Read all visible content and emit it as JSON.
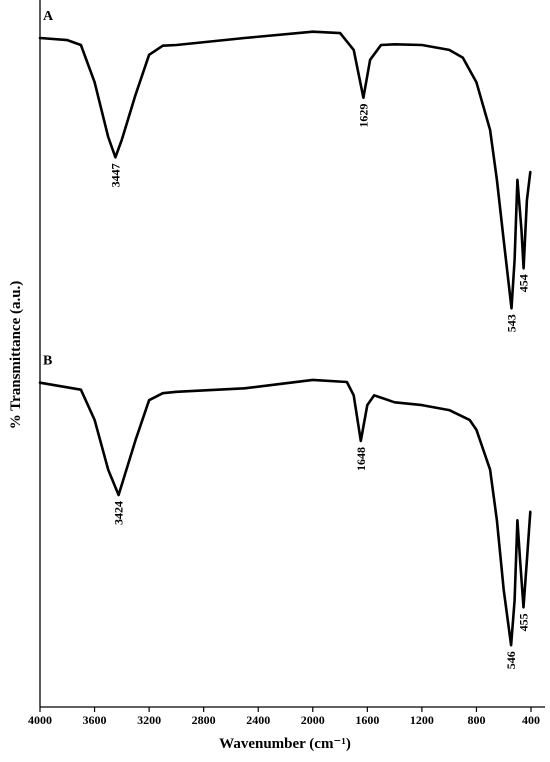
{
  "chart_data": {
    "type": "line",
    "xlabel": "Wavenumber (cm⁻¹)",
    "ylabel": "% Transmittance (a.u.)",
    "xlim": [
      4000,
      400
    ],
    "xticks": [
      4000,
      3600,
      3200,
      2800,
      2400,
      2000,
      1600,
      1200,
      800,
      400
    ],
    "ylim": [
      0,
      100
    ],
    "series": [
      {
        "name": "A",
        "color": "#000000",
        "x": [
          4000,
          3800,
          3700,
          3600,
          3500,
          3447,
          3400,
          3300,
          3200,
          3100,
          3000,
          2500,
          2000,
          1800,
          1700,
          1629,
          1580,
          1500,
          1400,
          1200,
          1000,
          900,
          800,
          700,
          650,
          600,
          543,
          520,
          500,
          470,
          454,
          430,
          405
        ],
        "values": [
          95.3,
          95.0,
          94.3,
          89.0,
          81.2,
          78.3,
          80.8,
          87.2,
          92.9,
          94.2,
          94.3,
          95.3,
          96.2,
          96.0,
          93.6,
          86.8,
          92.2,
          94.3,
          94.4,
          94.3,
          93.6,
          92.5,
          89.0,
          82.2,
          75.1,
          66.5,
          56.8,
          63.7,
          75.1,
          67.9,
          62.5,
          72.2,
          76.2
        ],
        "peaks": [
          3447,
          1629,
          543,
          454
        ]
      },
      {
        "name": "B",
        "color": "#000000",
        "x": [
          4000,
          3700,
          3600,
          3500,
          3424,
          3300,
          3200,
          3100,
          3000,
          2500,
          2000,
          1750,
          1700,
          1648,
          1600,
          1550,
          1400,
          1200,
          1000,
          850,
          800,
          700,
          650,
          600,
          546,
          520,
          500,
          480,
          455,
          430,
          405
        ],
        "values": [
          46.2,
          45.2,
          40.9,
          33.8,
          30.2,
          38.0,
          43.7,
          44.7,
          44.9,
          45.4,
          46.6,
          46.3,
          44.4,
          37.9,
          43.0,
          44.4,
          43.4,
          43.0,
          42.3,
          40.9,
          39.5,
          33.8,
          26.6,
          16.7,
          8.8,
          15.2,
          26.6,
          20.9,
          14.2,
          20.9,
          27.8
        ],
        "peaks": [
          3424,
          1648,
          546,
          455
        ]
      }
    ]
  }
}
